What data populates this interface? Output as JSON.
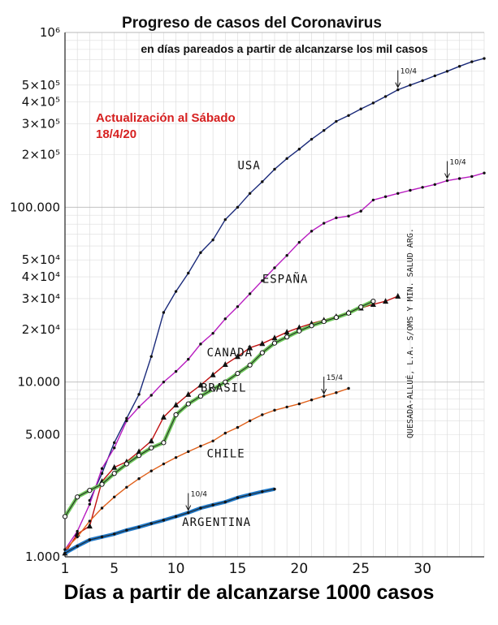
{
  "chart_data": {
    "type": "line",
    "title": "Progreso de casos del Coronavirus",
    "subtitle": "en días pareados a partir de alcanzarse  los mil casos",
    "annotation": "Actualización al Sábado 18/4/20",
    "xlabel": "Días a partir de alcanzarse 1000 casos",
    "source_note": "QUESADA-ALLUÉ, L.A. S/OMS Y MIN. SALUD ARG.",
    "xlim": [
      1,
      35
    ],
    "ylim": [
      1000,
      1000000
    ],
    "yscale": "log",
    "grid": true,
    "x_ticks": [
      "1",
      "5",
      "10",
      "15",
      "20",
      "25",
      "30"
    ],
    "y_ticks": [
      {
        "value": 1000,
        "label": "1.000"
      },
      {
        "value": 5000,
        "label": "5.000"
      },
      {
        "value": 10000,
        "label": "10.000"
      },
      {
        "value": 20000,
        "label": "2×10⁴"
      },
      {
        "value": 30000,
        "label": "3×10⁴"
      },
      {
        "value": 40000,
        "label": "4×10⁴"
      },
      {
        "value": 50000,
        "label": "5×10⁴"
      },
      {
        "value": 100000,
        "label": "100.000"
      },
      {
        "value": 200000,
        "label": "2×10⁵"
      },
      {
        "value": 300000,
        "label": "3×10⁵"
      },
      {
        "value": 400000,
        "label": "4×10⁵"
      },
      {
        "value": 500000,
        "label": "5×10⁵"
      },
      {
        "value": 1000000,
        "label": "10⁶"
      }
    ],
    "series": [
      {
        "name": "USA",
        "color": "#1a2a7a",
        "marker": "dot",
        "x": [
          3,
          4,
          5,
          6,
          7,
          8,
          9,
          10,
          11,
          12,
          13,
          14,
          15,
          16,
          17,
          18,
          19,
          20,
          21,
          22,
          23,
          24,
          25,
          26,
          27,
          28,
          29,
          30,
          31,
          32,
          33,
          34,
          35
        ],
        "y": [
          2100,
          3000,
          4500,
          6200,
          8500,
          14000,
          25000,
          33000,
          42000,
          55000,
          65000,
          85000,
          100000,
          120000,
          140000,
          165000,
          190000,
          215000,
          245000,
          275000,
          310000,
          335000,
          365000,
          395000,
          430000,
          470000,
          500000,
          530000,
          565000,
          600000,
          640000,
          680000,
          710000
        ],
        "marker_label": "10/4",
        "marker_x": 28
      },
      {
        "name": "ESPAÑA",
        "color": "#b81cc0",
        "marker": "dot",
        "x": [
          1,
          2,
          3,
          4,
          5,
          6,
          7,
          8,
          9,
          10,
          11,
          12,
          13,
          14,
          15,
          16,
          17,
          18,
          19,
          20,
          21,
          22,
          23,
          24,
          25,
          26,
          27,
          28,
          29,
          30,
          31,
          32,
          33,
          34,
          35
        ],
        "y": [
          1100,
          1400,
          2000,
          3200,
          4200,
          6000,
          7200,
          8400,
          10000,
          11500,
          13500,
          16500,
          19000,
          23000,
          27000,
          32000,
          38000,
          45000,
          53000,
          63000,
          73000,
          81000,
          87000,
          89000,
          95000,
          110000,
          115000,
          120000,
          125000,
          130000,
          135000,
          142000,
          146000,
          150000,
          157000
        ],
        "marker_label": "10/4",
        "marker_x": 32
      },
      {
        "name": "CANADÁ",
        "color": "#c01010",
        "marker": "triangle",
        "x": [
          1,
          2,
          3,
          4,
          5,
          6,
          7,
          8,
          9,
          10,
          11,
          12,
          13,
          14,
          15,
          16,
          17,
          18,
          19,
          20,
          21,
          22,
          23,
          24,
          25,
          26,
          27,
          28
        ],
        "y": [
          1050,
          1350,
          1500,
          2700,
          3250,
          3500,
          4000,
          4600,
          6300,
          7400,
          8500,
          9600,
          11000,
          12600,
          14000,
          15700,
          16600,
          17900,
          19300,
          20500,
          21600,
          22600,
          23700,
          25000,
          26500,
          27800,
          29000,
          31000
        ]
      },
      {
        "name": "BRASIL",
        "color": "#5fc24a",
        "marker": "circle",
        "x": [
          1,
          2,
          3,
          4,
          5,
          6,
          7,
          8,
          9,
          10,
          11,
          12,
          13,
          14,
          15,
          16,
          17,
          18,
          19,
          20,
          21,
          22,
          23,
          24,
          25,
          26
        ],
        "y": [
          1700,
          2200,
          2400,
          2600,
          3000,
          3400,
          3800,
          4200,
          4500,
          6500,
          7500,
          8300,
          9100,
          10000,
          11200,
          12500,
          14700,
          16700,
          18100,
          19600,
          21000,
          22200,
          23400,
          24800,
          26900,
          29000
        ]
      },
      {
        "name": "CHILE",
        "color": "#e0601a",
        "marker": "dot",
        "x": [
          1,
          2,
          3,
          4,
          5,
          6,
          7,
          8,
          9,
          10,
          11,
          12,
          13,
          14,
          15,
          16,
          17,
          18,
          19,
          20,
          21,
          22,
          23,
          24
        ],
        "y": [
          1100,
          1300,
          1600,
          1900,
          2200,
          2500,
          2800,
          3100,
          3400,
          3700,
          4000,
          4300,
          4600,
          5100,
          5500,
          6000,
          6500,
          6900,
          7200,
          7500,
          7900,
          8300,
          8700,
          9200
        ],
        "marker_label": "15/4",
        "marker_x": 22
      },
      {
        "name": "ARGENTINA",
        "color": "#1f78c8",
        "marker": "dot",
        "x": [
          1,
          2,
          3,
          4,
          5,
          6,
          7,
          8,
          9,
          10,
          11,
          12,
          13,
          14,
          15,
          16,
          17,
          18
        ],
        "y": [
          1050,
          1150,
          1250,
          1300,
          1350,
          1420,
          1480,
          1550,
          1620,
          1700,
          1790,
          1900,
          1980,
          2060,
          2180,
          2270,
          2360,
          2440
        ],
        "marker_label": "10/4",
        "marker_x": 11
      }
    ]
  }
}
